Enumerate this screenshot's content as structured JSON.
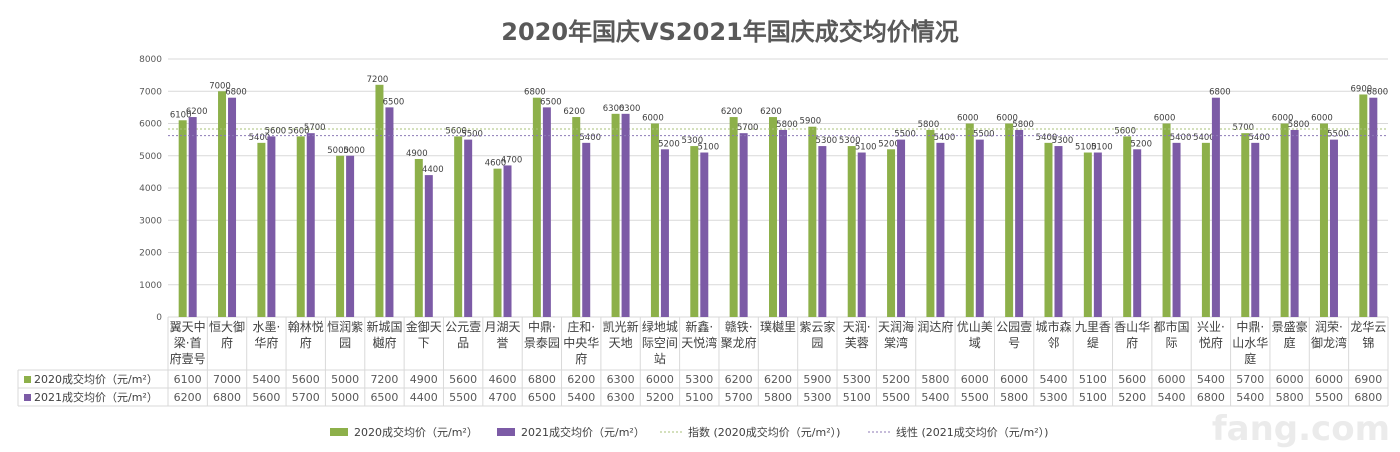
{
  "chart_data": {
    "type": "bar",
    "title": "2020年国庆VS2021年国庆成交均价情况",
    "ylim": [
      0,
      8000
    ],
    "yticks": [
      0,
      1000,
      2000,
      3000,
      4000,
      5000,
      6000,
      7000,
      8000
    ],
    "grid": true,
    "legend_position": "bottom",
    "categories": [
      [
        "翼天中",
        "梁·首",
        "府壹号"
      ],
      [
        "恒大御",
        "府"
      ],
      [
        "水墨·",
        "华府"
      ],
      [
        "翰林悦",
        "府"
      ],
      [
        "恒润紫",
        "园"
      ],
      [
        "新城国",
        "樾府"
      ],
      [
        "金御天",
        "下"
      ],
      [
        "公元壹",
        "品"
      ],
      [
        "月湖天",
        "誉"
      ],
      [
        "中鼎·",
        "景泰园"
      ],
      [
        "庄和·",
        "中央华",
        "府"
      ],
      [
        "凯光新",
        "天地"
      ],
      [
        "绿地城",
        "际空间",
        "站"
      ],
      [
        "新鑫·",
        "天悦湾"
      ],
      [
        "赣铁·",
        "聚龙府"
      ],
      [
        "璞樾里"
      ],
      [
        "紫云家",
        "园"
      ],
      [
        "天润·",
        "芙蓉"
      ],
      [
        "天润海",
        "棠湾"
      ],
      [
        "润达府"
      ],
      [
        "优山美",
        "域"
      ],
      [
        "公园壹",
        "号"
      ],
      [
        "城市森",
        "邻"
      ],
      [
        "九里香",
        "缇"
      ],
      [
        "香山华",
        "府"
      ],
      [
        "都市国",
        "际"
      ],
      [
        "兴业·",
        "悦府"
      ],
      [
        "中鼎·",
        "山水华",
        "庭"
      ],
      [
        "景盛豪",
        "庭"
      ],
      [
        "润荣·",
        "御龙湾"
      ],
      [
        "龙华云",
        "锦"
      ]
    ],
    "series": [
      {
        "name": "2020成交均价（元/m²）",
        "color": "#8db04a",
        "values": [
          6100,
          7000,
          5400,
          5600,
          5000,
          7200,
          4900,
          5600,
          4600,
          6800,
          6200,
          6300,
          6000,
          5300,
          6200,
          6200,
          5900,
          5300,
          5200,
          5800,
          6000,
          6000,
          5400,
          5100,
          5600,
          6000,
          5400,
          5700,
          6000,
          6000,
          6900
        ]
      },
      {
        "name": "2021成交均价（元/m²）",
        "color": "#7c5ba6",
        "values": [
          6200,
          6800,
          5600,
          5700,
          5000,
          6500,
          4400,
          5500,
          4700,
          6500,
          5400,
          6300,
          5200,
          5100,
          5700,
          5800,
          5300,
          5100,
          5500,
          5400,
          5500,
          5800,
          5300,
          5100,
          5200,
          5400,
          6800,
          5400,
          5800,
          5500,
          6800
        ]
      }
    ],
    "trendlines": [
      {
        "name": "指数 (2020成交均价（元/m²）)",
        "color": "#a9c27a"
      },
      {
        "name": "线性 (2021成交均价（元/m²）)",
        "color": "#8c79b5"
      }
    ]
  },
  "watermark": "fang.com"
}
